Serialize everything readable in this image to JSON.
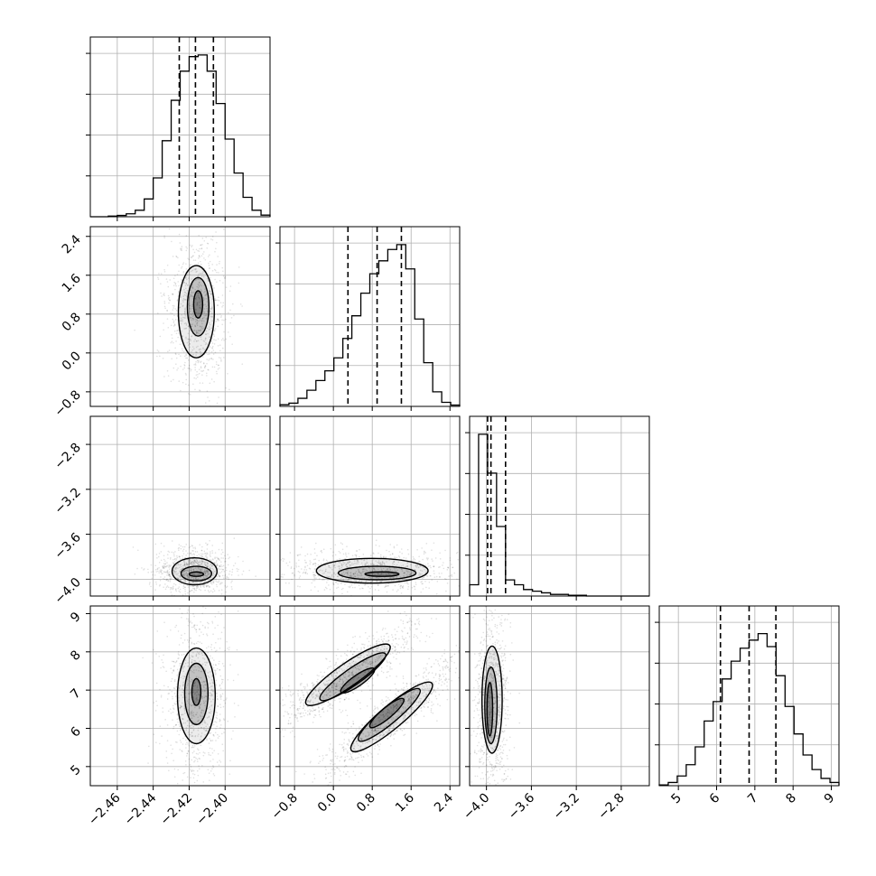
{
  "chart_data": {
    "type": "corner",
    "params": [
      {
        "range": [
          -2.475,
          -2.375
        ],
        "ticks": [
          -2.46,
          -2.44,
          -2.42,
          -2.4
        ],
        "tick_labels": [
          "−2.46",
          "−2.44",
          "−2.42",
          "−2.40"
        ],
        "mean": -2.4165,
        "sd": 0.0095,
        "quantiles": [
          -2.4255,
          -2.4165,
          -2.4065
        ]
      },
      {
        "range": [
          -1.1,
          2.6
        ],
        "ticks": [
          -0.8,
          0.0,
          0.8,
          1.6,
          2.4
        ],
        "tick_labels": [
          "−0.8",
          "0.0",
          "0.8",
          "1.6",
          "2.4"
        ],
        "mean": 0.9,
        "sd": 0.55,
        "quantiles": [
          0.3,
          0.9,
          1.4
        ]
      },
      {
        "range": [
          -4.15,
          -2.55
        ],
        "ticks": [
          -4.0,
          -3.6,
          -3.2,
          -2.8
        ],
        "tick_labels": [
          "−4.0",
          "−3.6",
          "−3.2",
          "−2.8"
        ],
        "mean": -3.95,
        "sd": 0.07,
        "quantiles": [
          -3.99,
          -3.96,
          -3.83
        ]
      },
      {
        "range": [
          4.5,
          9.2
        ],
        "ticks": [
          5,
          6,
          7,
          8,
          9
        ],
        "tick_labels": [
          "5",
          "6",
          "7",
          "8",
          "9"
        ],
        "mean": 6.85,
        "sd": 0.7,
        "quantiles": [
          6.1,
          6.85,
          7.55
        ]
      }
    ],
    "hist_bins": [
      [
        0.0,
        0.0,
        0.004,
        0.008,
        0.018,
        0.04,
        0.11,
        0.24,
        0.47,
        0.72,
        0.9,
        0.99,
        1.0,
        0.9,
        0.7,
        0.48,
        0.27,
        0.12,
        0.04,
        0.01
      ],
      [
        0.01,
        0.02,
        0.05,
        0.1,
        0.16,
        0.22,
        0.3,
        0.42,
        0.56,
        0.7,
        0.82,
        0.9,
        0.97,
        1.0,
        0.85,
        0.54,
        0.27,
        0.09,
        0.025,
        0.008
      ],
      [
        0.07,
        1.0,
        0.76,
        0.43,
        0.1,
        0.07,
        0.04,
        0.03,
        0.02,
        0.01,
        0.01,
        0.005,
        0.005,
        0.0,
        0.0,
        0.0,
        0.0,
        0.0,
        0.0,
        0.0
      ],
      [
        0.005,
        0.02,
        0.06,
        0.13,
        0.24,
        0.4,
        0.52,
        0.66,
        0.77,
        0.85,
        0.9,
        0.94,
        0.86,
        0.68,
        0.49,
        0.32,
        0.19,
        0.1,
        0.045,
        0.02
      ]
    ],
    "pair_panels": [
      {
        "x": 0,
        "y": 1,
        "contours": [
          {
            "level": "inner",
            "cx": -2.415,
            "cy": 1.0,
            "rx": 0.0025,
            "ry": 0.28,
            "angle": 0
          },
          {
            "level": "mid",
            "cx": -2.415,
            "cy": 0.95,
            "rx": 0.006,
            "ry": 0.6,
            "angle": 0
          },
          {
            "level": "outer",
            "cx": -2.416,
            "cy": 0.85,
            "rx": 0.01,
            "ry": 0.95,
            "angle": 0
          }
        ]
      },
      {
        "x": 0,
        "y": 2,
        "contours": [
          {
            "level": "inner",
            "cx": -2.416,
            "cy": -3.955,
            "rx": 0.004,
            "ry": 0.02,
            "angle": 0
          },
          {
            "level": "mid",
            "cx": -2.416,
            "cy": -3.95,
            "rx": 0.0085,
            "ry": 0.065,
            "angle": 0
          },
          {
            "level": "outer",
            "cx": -2.417,
            "cy": -3.93,
            "rx": 0.0125,
            "ry": 0.12,
            "angle": 0
          }
        ]
      },
      {
        "x": 1,
        "y": 2,
        "contours": [
          {
            "level": "inner",
            "cx": 1.0,
            "cy": -3.955,
            "rx": 0.35,
            "ry": 0.02,
            "angle": 0
          },
          {
            "level": "mid",
            "cx": 0.9,
            "cy": -3.945,
            "rx": 0.8,
            "ry": 0.06,
            "angle": 0
          },
          {
            "level": "outer",
            "cx": 0.8,
            "cy": -3.925,
            "rx": 1.15,
            "ry": 0.11,
            "angle": 0
          }
        ]
      },
      {
        "x": 0,
        "y": 3,
        "contours": [
          {
            "level": "inner",
            "cx": -2.416,
            "cy": 6.95,
            "rx": 0.0025,
            "ry": 0.35,
            "angle": 0
          },
          {
            "level": "mid",
            "cx": -2.416,
            "cy": 6.9,
            "rx": 0.0065,
            "ry": 0.8,
            "angle": 0
          },
          {
            "level": "outer",
            "cx": -2.416,
            "cy": 6.85,
            "rx": 0.0105,
            "ry": 1.25,
            "angle": 0
          }
        ]
      },
      {
        "x": 1,
        "y": 3,
        "contours": [
          {
            "level": "inner",
            "cx": 0.5,
            "cy": 7.25,
            "rx": 0.42,
            "ry": 0.14,
            "angle": -35
          },
          {
            "level": "mid",
            "cx": 0.4,
            "cy": 7.35,
            "rx": 0.82,
            "ry": 0.22,
            "angle": -35
          },
          {
            "level": "outer",
            "cx": 0.3,
            "cy": 7.4,
            "rx": 1.05,
            "ry": 0.3,
            "angle": -35
          },
          {
            "level": "inner",
            "cx": 1.1,
            "cy": 6.4,
            "rx": 0.45,
            "ry": 0.14,
            "angle": -40
          },
          {
            "level": "mid",
            "cx": 1.15,
            "cy": 6.35,
            "rx": 0.82,
            "ry": 0.22,
            "angle": -40
          },
          {
            "level": "outer",
            "cx": 1.2,
            "cy": 6.3,
            "rx": 1.08,
            "ry": 0.3,
            "angle": -40
          }
        ]
      },
      {
        "x": 2,
        "y": 3,
        "contours": [
          {
            "level": "inner",
            "cx": -3.97,
            "cy": 6.5,
            "rx": 0.025,
            "ry": 0.7,
            "angle": 0
          },
          {
            "level": "mid",
            "cx": -3.96,
            "cy": 6.6,
            "rx": 0.055,
            "ry": 1.0,
            "angle": 0
          },
          {
            "level": "outer",
            "cx": -3.95,
            "cy": 6.75,
            "rx": 0.09,
            "ry": 1.4,
            "angle": 0
          }
        ]
      }
    ],
    "grid": true,
    "quantile_lines": "dashed",
    "colors": {
      "line": "#000000",
      "grid": "#b0b0b0",
      "scatter": "#000000"
    }
  }
}
